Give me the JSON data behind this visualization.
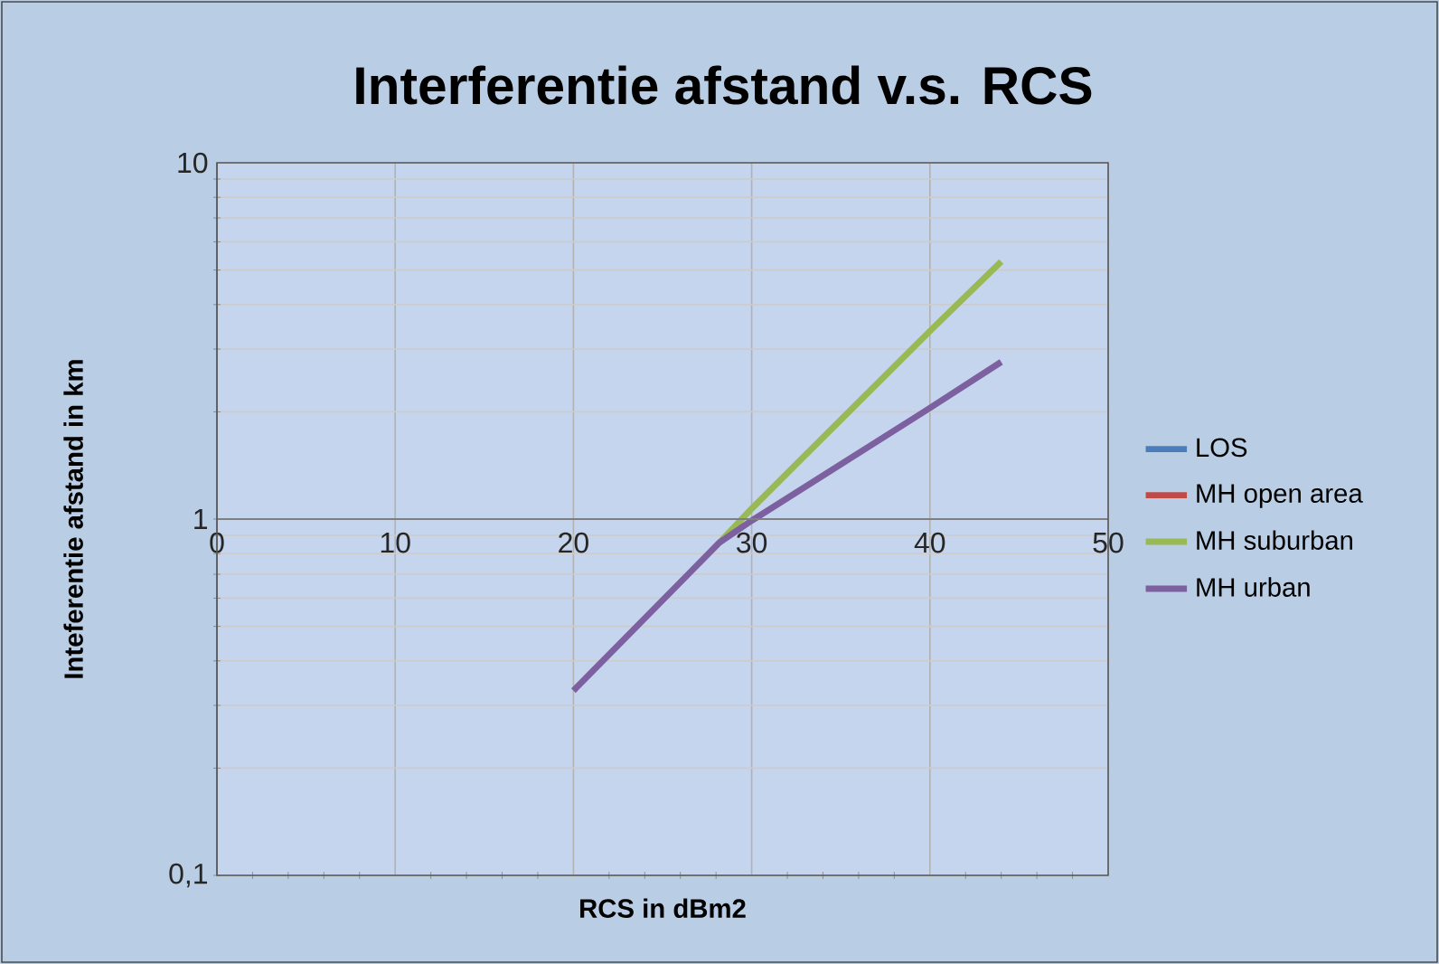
{
  "chart_data": {
    "type": "line",
    "title": "Interferentie afstand v.s. RCS",
    "xlabel": "RCS in dBm2",
    "ylabel": "Inteferentie afstand in km",
    "log": "y",
    "xlim": [
      0,
      50
    ],
    "xticks": [
      0,
      10,
      20,
      30,
      40,
      50
    ],
    "ylim": [
      0.1,
      10
    ],
    "yticks": [
      {
        "value": 0.1,
        "label": "0,1"
      },
      1,
      10
    ],
    "grid": true,
    "ref_lines": [
      {
        "axis": "y",
        "value": 1,
        "color": "#7f7f7f"
      }
    ],
    "legend": "right",
    "line_style": "solid",
    "marker": "none",
    "series": [
      {
        "name": "LOS",
        "color": "#4a7ebb",
        "values": [
          null
        ]
      },
      {
        "name": "MH open area",
        "color": "#be4b48",
        "values": [
          null
        ]
      },
      {
        "name": "MH suburban",
        "color": "#98b954",
        "x": [
          28.2,
          30,
          35,
          40,
          44
        ],
        "values": [
          0.86,
          1.07,
          1.9,
          3.37,
          5.28
        ]
      },
      {
        "name": "MH urban",
        "color": "#7d60a0",
        "x": [
          20,
          28.2,
          30,
          40,
          44
        ],
        "values": [
          0.33,
          0.86,
          0.99,
          2.05,
          2.76
        ]
      }
    ]
  }
}
